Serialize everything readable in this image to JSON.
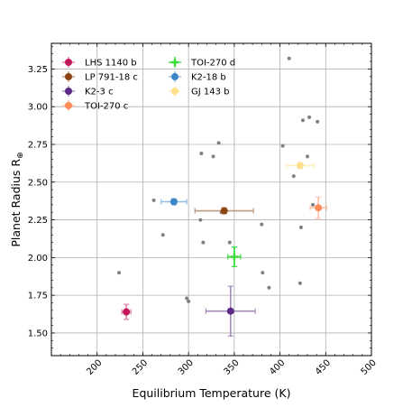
{
  "chart_data": {
    "type": "scatter",
    "title": "",
    "xlabel": "Equilibrium Temperature (K)",
    "ylabel": "Planet Radius R",
    "ylabel_subscript": "⊕",
    "xlim": [
      150,
      500
    ],
    "ylim": [
      1.35,
      3.42
    ],
    "xticks": [
      200,
      250,
      300,
      350,
      400,
      450,
      500
    ],
    "xtick_labels": [
      "200",
      "250",
      "300",
      "350",
      "400",
      "450",
      "500"
    ],
    "yticks": [
      1.5,
      1.75,
      2.0,
      2.25,
      2.5,
      2.75,
      3.0,
      3.25
    ],
    "ytick_labels": [
      "1.50",
      "1.75",
      "2.00",
      "2.25",
      "2.50",
      "2.75",
      "3.00",
      "3.25"
    ],
    "grid": true,
    "legend_position": "top-left",
    "background_points": {
      "color": "#808080",
      "points": [
        [
          224,
          1.9
        ],
        [
          262,
          2.38
        ],
        [
          272,
          2.15
        ],
        [
          298,
          1.73
        ],
        [
          300,
          1.71
        ],
        [
          313,
          2.25
        ],
        [
          314,
          2.69
        ],
        [
          316,
          2.1
        ],
        [
          327,
          2.67
        ],
        [
          333,
          2.76
        ],
        [
          336,
          2.3
        ],
        [
          345,
          2.1
        ],
        [
          380,
          2.22
        ],
        [
          381,
          1.9
        ],
        [
          388,
          1.8
        ],
        [
          403,
          2.74
        ],
        [
          410,
          3.32
        ],
        [
          415,
          2.54
        ],
        [
          422,
          1.83
        ],
        [
          423,
          2.2
        ],
        [
          425,
          2.91
        ],
        [
          430,
          2.67
        ],
        [
          432,
          2.93
        ],
        [
          436,
          2.35
        ],
        [
          441,
          2.9
        ]
      ]
    },
    "series": [
      {
        "name": "LHS 1140 b",
        "color": "#c2185b",
        "marker": "circle",
        "x": 232,
        "y": 1.64,
        "xerr": 5,
        "yerr": 0.05
      },
      {
        "name": "LP 791-18 c",
        "color": "#8b4513",
        "marker": "circle",
        "x": 339,
        "y": 2.31,
        "xerr": 32,
        "yerr": 0.02
      },
      {
        "name": "K2-3 c",
        "color": "#5b2a86",
        "marker": "circle",
        "x": 346,
        "y": 1.645,
        "xerr": 27,
        "yerr": 0.165
      },
      {
        "name": "TOI-270 c",
        "color": "#ff8c57",
        "marker": "circle",
        "x": 442,
        "y": 2.33,
        "xerr": 9,
        "yerr": 0.07
      },
      {
        "name": "TOI-270 d",
        "color": "#3ddc3d",
        "marker": "cross",
        "x": 350,
        "y": 2.005,
        "xerr": 7,
        "yerr": 0.065
      },
      {
        "name": "K2-18 b",
        "color": "#3a86c8",
        "marker": "circle",
        "x": 284,
        "y": 2.37,
        "xerr": 14,
        "yerr": 0.02
      },
      {
        "name": "GJ 143 b",
        "color": "#ffe08a",
        "marker": "circle",
        "x": 422,
        "y": 2.61,
        "xerr": 15,
        "yerr": 0.02
      }
    ]
  }
}
